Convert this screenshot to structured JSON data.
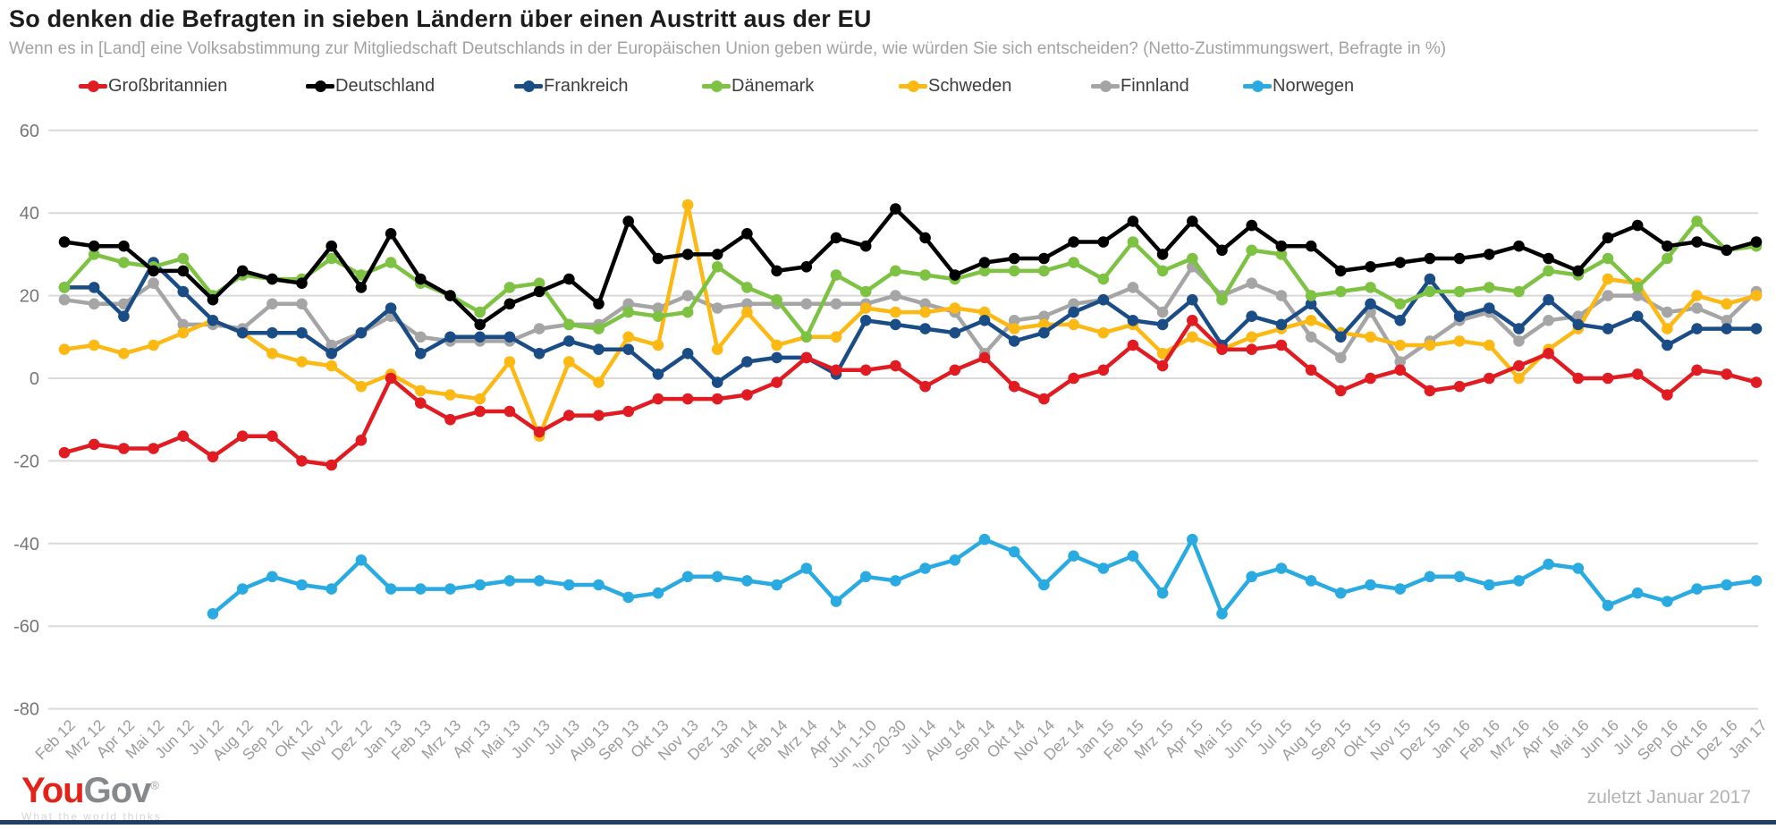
{
  "header": {
    "title": "So denken die Befragten in sieben Ländern über einen Austritt aus der EU",
    "subtitle": "Wenn es in [Land] eine Volksabstimmung zur Mitgliedschaft Deutschlands in der Europäischen Union geben würde, wie würden Sie sich entscheiden? (Netto-Zustimmungswert, Befragte in %)"
  },
  "footer": {
    "logo_you": "You",
    "logo_gov": "Gov",
    "logo_reg": "®",
    "tagline": "What the world thinks",
    "updated": "zuletzt Januar 2017"
  },
  "chart_data": {
    "type": "line",
    "title": "So denken die Befragten in sieben Ländern über einen Austritt aus der EU",
    "xlabel": "",
    "ylabel": "Netto-Zustimmungswert (%)",
    "ylim": [
      -80,
      60
    ],
    "yticks": [
      60,
      40,
      20,
      0,
      -20,
      -40,
      -60,
      -80
    ],
    "grid": true,
    "legend_position": "top",
    "categories": [
      "Feb 12",
      "Mrz 12",
      "Apr 12",
      "Mai 12",
      "Jun 12",
      "Jul 12",
      "Aug 12",
      "Sep 12",
      "Okt 12",
      "Nov 12",
      "Dez 12",
      "Jan 13",
      "Feb 13",
      "Mrz 13",
      "Apr 13",
      "Mai 13",
      "Jun 13",
      "Jul 13",
      "Aug 13",
      "Sep 13",
      "Okt 13",
      "Nov 13",
      "Dez 13",
      "Jan 14",
      "Feb 14",
      "Mrz 14",
      "Apr 14",
      "Jun 1-10",
      "Jun 20-30",
      "Jul 14",
      "Aug 14",
      "Sep 14",
      "Okt 14",
      "Nov 14",
      "Dez 14",
      "Jan 15",
      "Feb 15",
      "Mrz 15",
      "Apr 15",
      "Mai 15",
      "Jun 15",
      "Jul 15",
      "Aug 15",
      "Sep 15",
      "Okt 15",
      "Nov 15",
      "Dez 15",
      "Jan 16",
      "Feb 16",
      "Mrz 16",
      "Apr 16",
      "Mai 16",
      "Jun 16",
      "Jul 16",
      "Sep 16",
      "Okt 16",
      "Dez 16",
      "Jan 17"
    ],
    "series": [
      {
        "name": "Großbritannien",
        "color": "#e11b22",
        "values": [
          -18,
          -16,
          -17,
          -17,
          -14,
          -19,
          -14,
          -14,
          -20,
          -21,
          -15,
          0,
          -6,
          -10,
          -8,
          -8,
          -13,
          -9,
          -9,
          -8,
          -5,
          -5,
          -5,
          -4,
          -1,
          5,
          2,
          2,
          3,
          -2,
          2,
          5,
          -2,
          -5,
          0,
          2,
          8,
          3,
          14,
          7,
          7,
          8,
          2,
          -3,
          0,
          2,
          -3,
          -2,
          0,
          3,
          6,
          0,
          0,
          1,
          -4,
          2,
          1,
          -1
        ]
      },
      {
        "name": "Deutschland",
        "color": "#000000",
        "values": [
          33,
          32,
          32,
          26,
          26,
          19,
          26,
          24,
          23,
          32,
          22,
          35,
          24,
          20,
          13,
          18,
          21,
          24,
          18,
          38,
          29,
          30,
          30,
          35,
          26,
          27,
          34,
          32,
          41,
          34,
          25,
          28,
          29,
          29,
          33,
          33,
          38,
          30,
          38,
          31,
          37,
          32,
          32,
          26,
          27,
          28,
          29,
          29,
          30,
          32,
          29,
          26,
          34,
          37,
          32,
          33,
          31,
          33
        ]
      },
      {
        "name": "Frankreich",
        "color": "#1a4c85",
        "values": [
          22,
          22,
          15,
          28,
          21,
          14,
          11,
          11,
          11,
          6,
          11,
          17,
          6,
          10,
          10,
          10,
          6,
          9,
          7,
          7,
          1,
          6,
          -1,
          4,
          5,
          5,
          1,
          14,
          13,
          12,
          11,
          14,
          9,
          11,
          16,
          19,
          14,
          13,
          19,
          8,
          15,
          13,
          18,
          10,
          18,
          14,
          24,
          15,
          17,
          12,
          19,
          13,
          12,
          15,
          8,
          12,
          12,
          12
        ]
      },
      {
        "name": "Dänemark",
        "color": "#7dc242",
        "values": [
          22,
          30,
          28,
          27,
          29,
          20,
          25,
          24,
          24,
          29,
          25,
          28,
          23,
          20,
          16,
          22,
          23,
          13,
          12,
          16,
          15,
          16,
          27,
          22,
          19,
          10,
          25,
          21,
          26,
          25,
          24,
          26,
          26,
          26,
          28,
          24,
          33,
          26,
          29,
          19,
          31,
          30,
          20,
          21,
          22,
          18,
          21,
          21,
          22,
          21,
          26,
          25,
          29,
          22,
          29,
          38,
          31,
          32
        ]
      },
      {
        "name": "Schweden",
        "color": "#fcb813",
        "values": [
          7,
          8,
          6,
          8,
          11,
          14,
          11,
          6,
          4,
          3,
          -2,
          1,
          -3,
          -4,
          -5,
          4,
          -14,
          4,
          -1,
          10,
          8,
          42,
          7,
          16,
          8,
          10,
          10,
          17,
          16,
          16,
          17,
          16,
          12,
          13,
          13,
          11,
          13,
          6,
          10,
          7,
          10,
          12,
          14,
          11,
          10,
          8,
          8,
          9,
          8,
          0,
          7,
          12,
          24,
          23,
          12,
          20,
          18,
          20
        ]
      },
      {
        "name": "Finnland",
        "color": "#a5a5a5",
        "values": [
          19,
          18,
          18,
          23,
          13,
          13,
          12,
          18,
          18,
          8,
          11,
          15,
          10,
          9,
          9,
          9,
          12,
          13,
          13,
          18,
          17,
          20,
          17,
          18,
          18,
          18,
          18,
          18,
          20,
          18,
          16,
          6,
          14,
          15,
          18,
          19,
          22,
          16,
          27,
          20,
          23,
          20,
          10,
          5,
          16,
          4,
          9,
          14,
          16,
          9,
          14,
          15,
          20,
          20,
          16,
          17,
          14,
          21
        ]
      },
      {
        "name": "Norwegen",
        "color": "#29abe2",
        "values": [
          null,
          null,
          null,
          null,
          null,
          -57,
          -51,
          -48,
          -50,
          -51,
          -44,
          -51,
          -51,
          -51,
          -50,
          -49,
          -49,
          -50,
          -50,
          -53,
          -52,
          -48,
          -48,
          -49,
          -50,
          -46,
          -54,
          -48,
          -49,
          -46,
          -44,
          -39,
          -42,
          -50,
          -43,
          -46,
          -43,
          -52,
          -39,
          -57,
          -48,
          -46,
          -49,
          -52,
          -50,
          -51,
          -48,
          -48,
          -50,
          -49,
          -45,
          -46,
          -55,
          -52,
          -54,
          -51,
          -50,
          -49
        ]
      }
    ]
  }
}
